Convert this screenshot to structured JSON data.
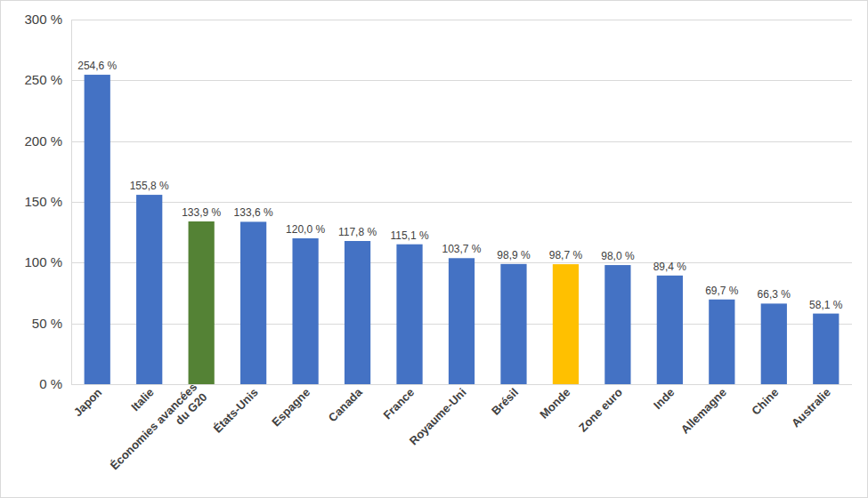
{
  "chart_data": {
    "type": "bar",
    "categories": [
      "Japon",
      "Italie",
      "Économies avancées du G20",
      "États-Unis",
      "Espagne",
      "Canada",
      "France",
      "Royaume-Uni",
      "Brésil",
      "Monde",
      "Zone euro",
      "Inde",
      "Allemagne",
      "Chine",
      "Australie"
    ],
    "values": [
      254.6,
      155.8,
      133.9,
      133.6,
      120.0,
      117.8,
      115.1,
      103.7,
      98.9,
      98.7,
      98.0,
      89.4,
      69.7,
      66.3,
      58.1
    ],
    "value_labels": [
      "254,6 %",
      "155,8 %",
      "133,9 %",
      "133,6 %",
      "120,0 %",
      "117,8 %",
      "115,1 %",
      "103,7 %",
      "98,9 %",
      "98,7 %",
      "98,0 %",
      "89,4 %",
      "69,7 %",
      "66,3 %",
      "58,1 %"
    ],
    "colors": [
      "#4472c4",
      "#4472c4",
      "#548235",
      "#4472c4",
      "#4472c4",
      "#4472c4",
      "#4472c4",
      "#4472c4",
      "#4472c4",
      "#ffc000",
      "#4472c4",
      "#4472c4",
      "#4472c4",
      "#4472c4",
      "#4472c4"
    ],
    "ylim": [
      0,
      300
    ],
    "yticks": [
      {
        "value": 0,
        "label": "0 %"
      },
      {
        "value": 50,
        "label": "50 %"
      },
      {
        "value": 100,
        "label": "100 %"
      },
      {
        "value": 150,
        "label": "150 %"
      },
      {
        "value": 200,
        "label": "200 %"
      },
      {
        "value": 250,
        "label": "250 %"
      },
      {
        "value": 300,
        "label": "300 %"
      }
    ],
    "grid": true,
    "data_labels": true
  }
}
